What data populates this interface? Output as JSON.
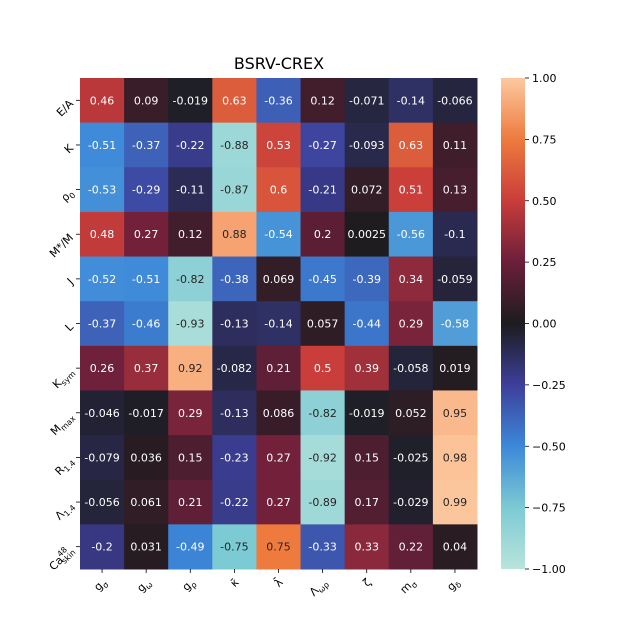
{
  "chart_data": {
    "type": "heatmap",
    "title": "BSRV-CREX",
    "xlabel": "",
    "ylabel": "",
    "x_labels": [
      {
        "base": "g",
        "sub": "σ"
      },
      {
        "base": "g",
        "sub": "ω"
      },
      {
        "base": "g",
        "sub": "ρ"
      },
      {
        "base": "κ̄",
        "sub": ""
      },
      {
        "base": "λ̄",
        "sub": ""
      },
      {
        "base": "Λ",
        "sub": "ωρ"
      },
      {
        "base": "ζ",
        "sub": ""
      },
      {
        "base": "m",
        "sub": "σ"
      },
      {
        "base": "g",
        "sub": "δ"
      }
    ],
    "y_labels": [
      {
        "base": "E/A",
        "sub": "",
        "sup": ""
      },
      {
        "base": "K",
        "sub": "",
        "sup": ""
      },
      {
        "base": "ρ",
        "sub": "0",
        "sup": ""
      },
      {
        "base": "M*/M",
        "sub": "",
        "sup": ""
      },
      {
        "base": "J",
        "sub": "",
        "sup": ""
      },
      {
        "base": "L",
        "sub": "",
        "sup": ""
      },
      {
        "base": "K",
        "sub": "sym",
        "sup": ""
      },
      {
        "base": "M",
        "sub": "max",
        "sup": ""
      },
      {
        "base": "R",
        "sub": "1.4",
        "sup": ""
      },
      {
        "base": "Λ",
        "sub": "1.4",
        "sup": ""
      },
      {
        "base": "Ca",
        "sub": "skin",
        "sup": "48"
      }
    ],
    "values": [
      [
        0.46,
        0.09,
        -0.019,
        0.63,
        -0.36,
        0.12,
        -0.071,
        -0.14,
        -0.066
      ],
      [
        -0.51,
        -0.37,
        -0.22,
        -0.88,
        0.53,
        -0.27,
        -0.093,
        0.63,
        0.11
      ],
      [
        -0.53,
        -0.29,
        -0.11,
        -0.87,
        0.6,
        -0.21,
        0.072,
        0.51,
        0.13
      ],
      [
        0.48,
        0.27,
        0.12,
        0.88,
        -0.54,
        0.2,
        0.0025,
        -0.56,
        -0.1
      ],
      [
        -0.52,
        -0.51,
        -0.82,
        -0.38,
        0.069,
        -0.45,
        -0.39,
        0.34,
        -0.059
      ],
      [
        -0.37,
        -0.46,
        -0.93,
        -0.13,
        -0.14,
        0.057,
        -0.44,
        0.29,
        -0.58
      ],
      [
        0.26,
        0.37,
        0.92,
        -0.082,
        0.21,
        0.5,
        0.39,
        -0.058,
        0.019
      ],
      [
        -0.046,
        -0.017,
        0.29,
        -0.13,
        0.086,
        -0.82,
        -0.019,
        0.052,
        0.95
      ],
      [
        -0.079,
        0.036,
        0.15,
        -0.23,
        0.27,
        -0.92,
        0.15,
        -0.025,
        0.98
      ],
      [
        -0.056,
        0.061,
        0.21,
        -0.22,
        0.27,
        -0.89,
        0.17,
        -0.029,
        0.99
      ],
      [
        -0.2,
        0.031,
        -0.49,
        -0.75,
        0.75,
        -0.33,
        0.33,
        0.22,
        0.04
      ]
    ],
    "value_labels": [
      [
        "0.46",
        "0.09",
        "-0.019",
        "0.63",
        "-0.36",
        "0.12",
        "-0.071",
        "-0.14",
        "-0.066"
      ],
      [
        "-0.51",
        "-0.37",
        "-0.22",
        "-0.88",
        "0.53",
        "-0.27",
        "-0.093",
        "0.63",
        "0.11"
      ],
      [
        "-0.53",
        "-0.29",
        "-0.11",
        "-0.87",
        "0.6",
        "-0.21",
        "0.072",
        "0.51",
        "0.13"
      ],
      [
        "0.48",
        "0.27",
        "0.12",
        "0.88",
        "-0.54",
        "0.2",
        "0.0025",
        "-0.56",
        "-0.1"
      ],
      [
        "-0.52",
        "-0.51",
        "-0.82",
        "-0.38",
        "0.069",
        "-0.45",
        "-0.39",
        "0.34",
        "-0.059"
      ],
      [
        "-0.37",
        "-0.46",
        "-0.93",
        "-0.13",
        "-0.14",
        "0.057",
        "-0.44",
        "0.29",
        "-0.58"
      ],
      [
        "0.26",
        "0.37",
        "0.92",
        "-0.082",
        "0.21",
        "0.5",
        "0.39",
        "-0.058",
        "0.019"
      ],
      [
        "-0.046",
        "-0.017",
        "0.29",
        "-0.13",
        "0.086",
        "-0.82",
        "-0.019",
        "0.052",
        "0.95"
      ],
      [
        "-0.079",
        "0.036",
        "0.15",
        "-0.23",
        "0.27",
        "-0.92",
        "0.15",
        "-0.025",
        "0.98"
      ],
      [
        "-0.056",
        "0.061",
        "0.21",
        "-0.22",
        "0.27",
        "-0.89",
        "0.17",
        "-0.029",
        "0.99"
      ],
      [
        "-0.2",
        "0.031",
        "-0.49",
        "-0.75",
        "0.75",
        "-0.33",
        "0.33",
        "0.22",
        "0.04"
      ]
    ],
    "vmin": -1.0,
    "vmax": 1.0,
    "colorbar": {
      "ticks": [
        1.0,
        0.75,
        0.5,
        0.25,
        0.0,
        -0.25,
        -0.5,
        -0.75,
        -1.0
      ],
      "tick_labels": [
        "1.00",
        "0.75",
        "0.50",
        "0.25",
        "0.00",
        "−0.25",
        "−0.50",
        "−0.75",
        "−1.00"
      ],
      "colormap": "icefire",
      "colormap_stops": [
        {
          "v": -1.0,
          "color": "#b9e4dc"
        },
        {
          "v": -0.75,
          "color": "#7ccad3"
        },
        {
          "v": -0.5,
          "color": "#3c88d9"
        },
        {
          "v": -0.25,
          "color": "#3d3f9a"
        },
        {
          "v": 0.0,
          "color": "#1d1c1e"
        },
        {
          "v": 0.25,
          "color": "#6b1f3b"
        },
        {
          "v": 0.5,
          "color": "#c93d3a"
        },
        {
          "v": 0.75,
          "color": "#ee7a3e"
        },
        {
          "v": 1.0,
          "color": "#fdc9a0"
        }
      ]
    },
    "grid": false,
    "legend": "colorbar-right"
  }
}
